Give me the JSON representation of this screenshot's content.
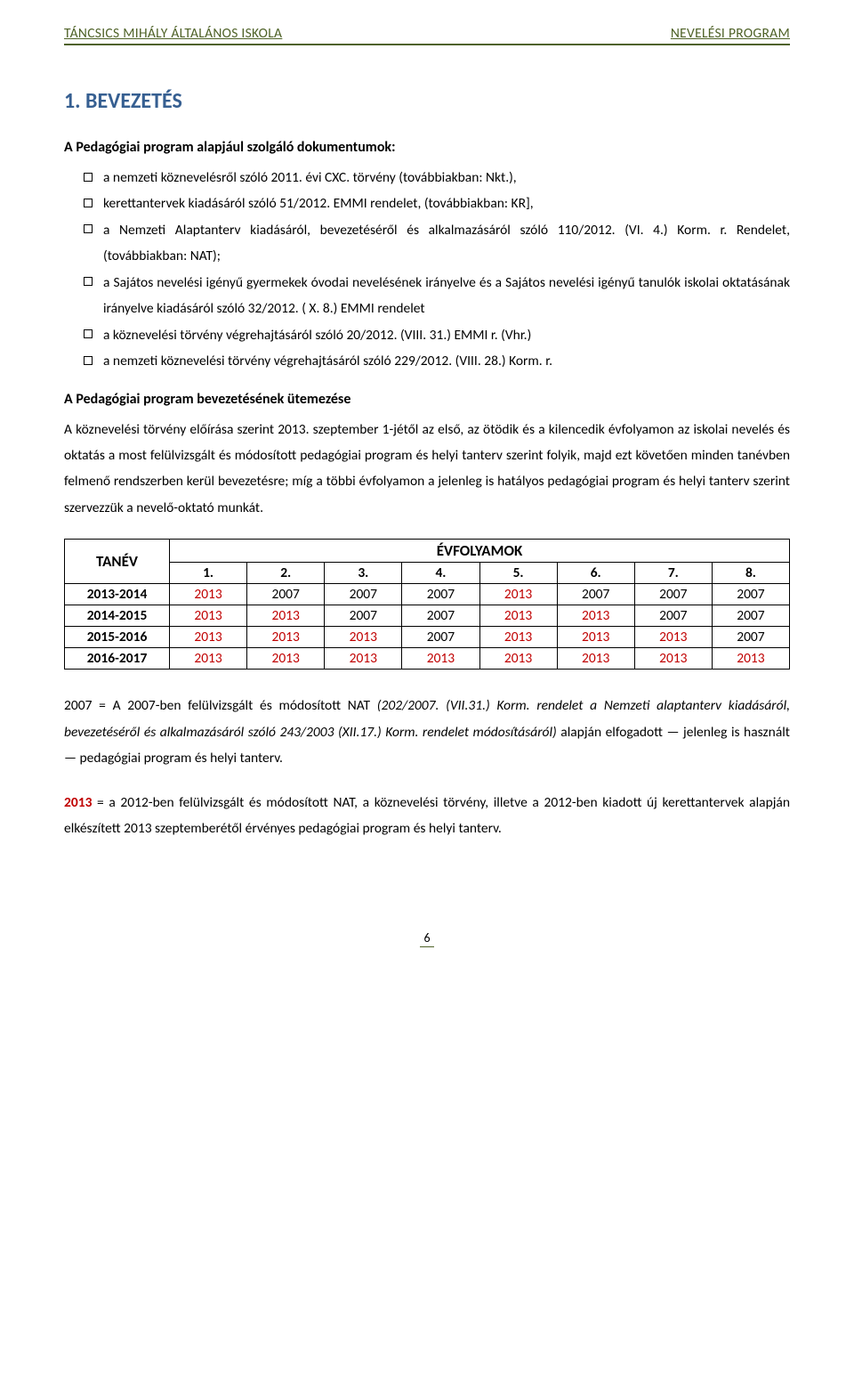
{
  "header": {
    "left": "TÁNCSICS MIHÁLY ÁLTALÁNOS ISKOLA",
    "right": "NEVELÉSI PROGRAM"
  },
  "h1": "1. BEVEZETÉS",
  "sub1": "A Pedagógiai program alapjául szolgáló dokumentumok:",
  "bullets": {
    "b0": "a nemzeti köznevelésről szóló 2011. évi CXC. törvény (továbbiakban: Nkt.),",
    "b1": "kerettantervek kiadásáról szóló 51/2012. EMMI rendelet, (továbbiakban: KR],",
    "b2": "a Nemzeti Alaptanterv kiadásáról, bevezetéséről és alkalmazásáról szóló 110/2012. (VI. 4.) Korm. r. Rendelet, (továbbiakban: NAT);",
    "b3": "a Sajátos nevelési igényű gyermekek óvodai nevelésének irányelve és a Sajátos nevelési igényű tanulók iskolai oktatásának irányelve kiadásáról szóló 32/2012. ( X. 8.) EMMI rendelet",
    "b4": "a köznevelési törvény végrehajtásáról szóló 20/2012. (VIII. 31.) EMMI r. (Vhr.)",
    "b5": "a nemzeti köznevelési törvény végrehajtásáról szóló 229/2012. (VIII. 28.) Korm. r."
  },
  "sub2": "A Pedagógiai program bevezetésének ütemezése",
  "p1": "A köznevelési törvény előírása szerint 2013. szeptember 1-jétől az első, az ötödik és a kilencedik évfolyamon az iskolai nevelés és oktatás a most felülvizsgált és módosított pedagógiai program és helyi tanterv szerint folyik, majd ezt követően minden tanévben felmenő rendszerben kerül bevezetésre; míg a többi évfolyamon a jelenleg is hatályos pedagógiai program és helyi tanterv szerint szervezzük a nevelő-oktató munkát.",
  "table": {
    "tanev": "TANÉV",
    "evf": "ÉVFOLYAMOK",
    "cols": [
      "1.",
      "2.",
      "3.",
      "4.",
      "5.",
      "6.",
      "7.",
      "8."
    ],
    "rows": [
      {
        "year": "2013-2014",
        "cells": [
          [
            "2013",
            "r"
          ],
          [
            "2007",
            ""
          ],
          [
            "2007",
            ""
          ],
          [
            "2007",
            ""
          ],
          [
            "2013",
            "r"
          ],
          [
            "2007",
            ""
          ],
          [
            "2007",
            ""
          ],
          [
            "2007",
            ""
          ]
        ]
      },
      {
        "year": "2014-2015",
        "cells": [
          [
            "2013",
            "r"
          ],
          [
            "2013",
            "r"
          ],
          [
            "2007",
            ""
          ],
          [
            "2007",
            ""
          ],
          [
            "2013",
            "r"
          ],
          [
            "2013",
            "r"
          ],
          [
            "2007",
            ""
          ],
          [
            "2007",
            ""
          ]
        ]
      },
      {
        "year": "2015-2016",
        "cells": [
          [
            "2013",
            "r"
          ],
          [
            "2013",
            "r"
          ],
          [
            "2013",
            "r"
          ],
          [
            "2007",
            ""
          ],
          [
            "2013",
            "r"
          ],
          [
            "2013",
            "r"
          ],
          [
            "2013",
            "r"
          ],
          [
            "2007",
            ""
          ]
        ]
      },
      {
        "year": "2016-2017",
        "cells": [
          [
            "2013",
            "r"
          ],
          [
            "2013",
            "r"
          ],
          [
            "2013",
            "r"
          ],
          [
            "2013",
            "r"
          ],
          [
            "2013",
            "r"
          ],
          [
            "2013",
            "r"
          ],
          [
            "2013",
            "r"
          ],
          [
            "2013",
            "r"
          ]
        ]
      }
    ]
  },
  "p2": {
    "a": "2007 = A 2007-ben felülvizsgált és módosított NAT ",
    "b": "(202/2007. (VII.31.) Korm. rendelet a Nemzeti alaptanterv kiadásáról, bevezetéséről és alkalmazásáról szóló 243/2003 (XII.17.) Korm. rendelet módosításáról)",
    "c": " alapján elfogadott — jelenleg is használt — pedagógiai program és helyi tanterv."
  },
  "p3": {
    "a": "2013",
    "b": " = a 2012-ben felülvizsgált és módosított NAT, a köznevelési törvény, illetve a 2012-ben kiadott új kerettantervek alapján elkészített 2013 szeptemberétől érvényes pedagógiai program és helyi tanterv."
  },
  "pagenum": "6"
}
